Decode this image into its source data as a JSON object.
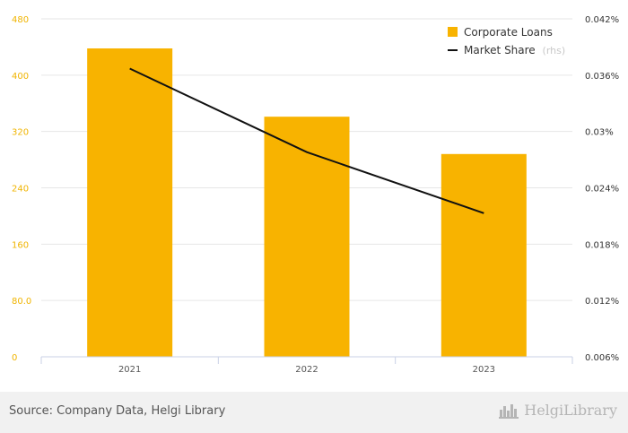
{
  "chart_data": {
    "type": "bar",
    "categories": [
      "2021",
      "2022",
      "2023"
    ],
    "series": [
      {
        "name": "Corporate Loans",
        "type": "bar",
        "axis": "left",
        "color": "#f8b300",
        "values": [
          438,
          341,
          288
        ]
      },
      {
        "name": "Market Share",
        "type": "line",
        "axis": "right",
        "color": "#111111",
        "values": [
          0.0367,
          0.0278,
          0.0213
        ]
      }
    ],
    "y_left": {
      "min": 0,
      "max": 480,
      "ticks": [
        "0",
        "80.0",
        "160",
        "240",
        "320",
        "400",
        "480"
      ],
      "tick_values": [
        0,
        80,
        160,
        240,
        320,
        400,
        480
      ]
    },
    "y_right": {
      "min": 0.006,
      "max": 0.042,
      "ticks": [
        "0.006%",
        "0.012%",
        "0.018%",
        "0.024%",
        "0.03%",
        "0.036%",
        "0.042%"
      ],
      "tick_values": [
        0.006,
        0.012,
        0.018,
        0.024,
        0.03,
        0.036,
        0.042
      ]
    },
    "legend": {
      "placement": "top-right",
      "rhs_suffix": "(rhs)"
    },
    "grid": true
  },
  "footer": {
    "source": "Source: Company Data, Helgi Library",
    "logo_text": "HelgiLibrary",
    "logo_icon": "city-skyline-icon"
  }
}
